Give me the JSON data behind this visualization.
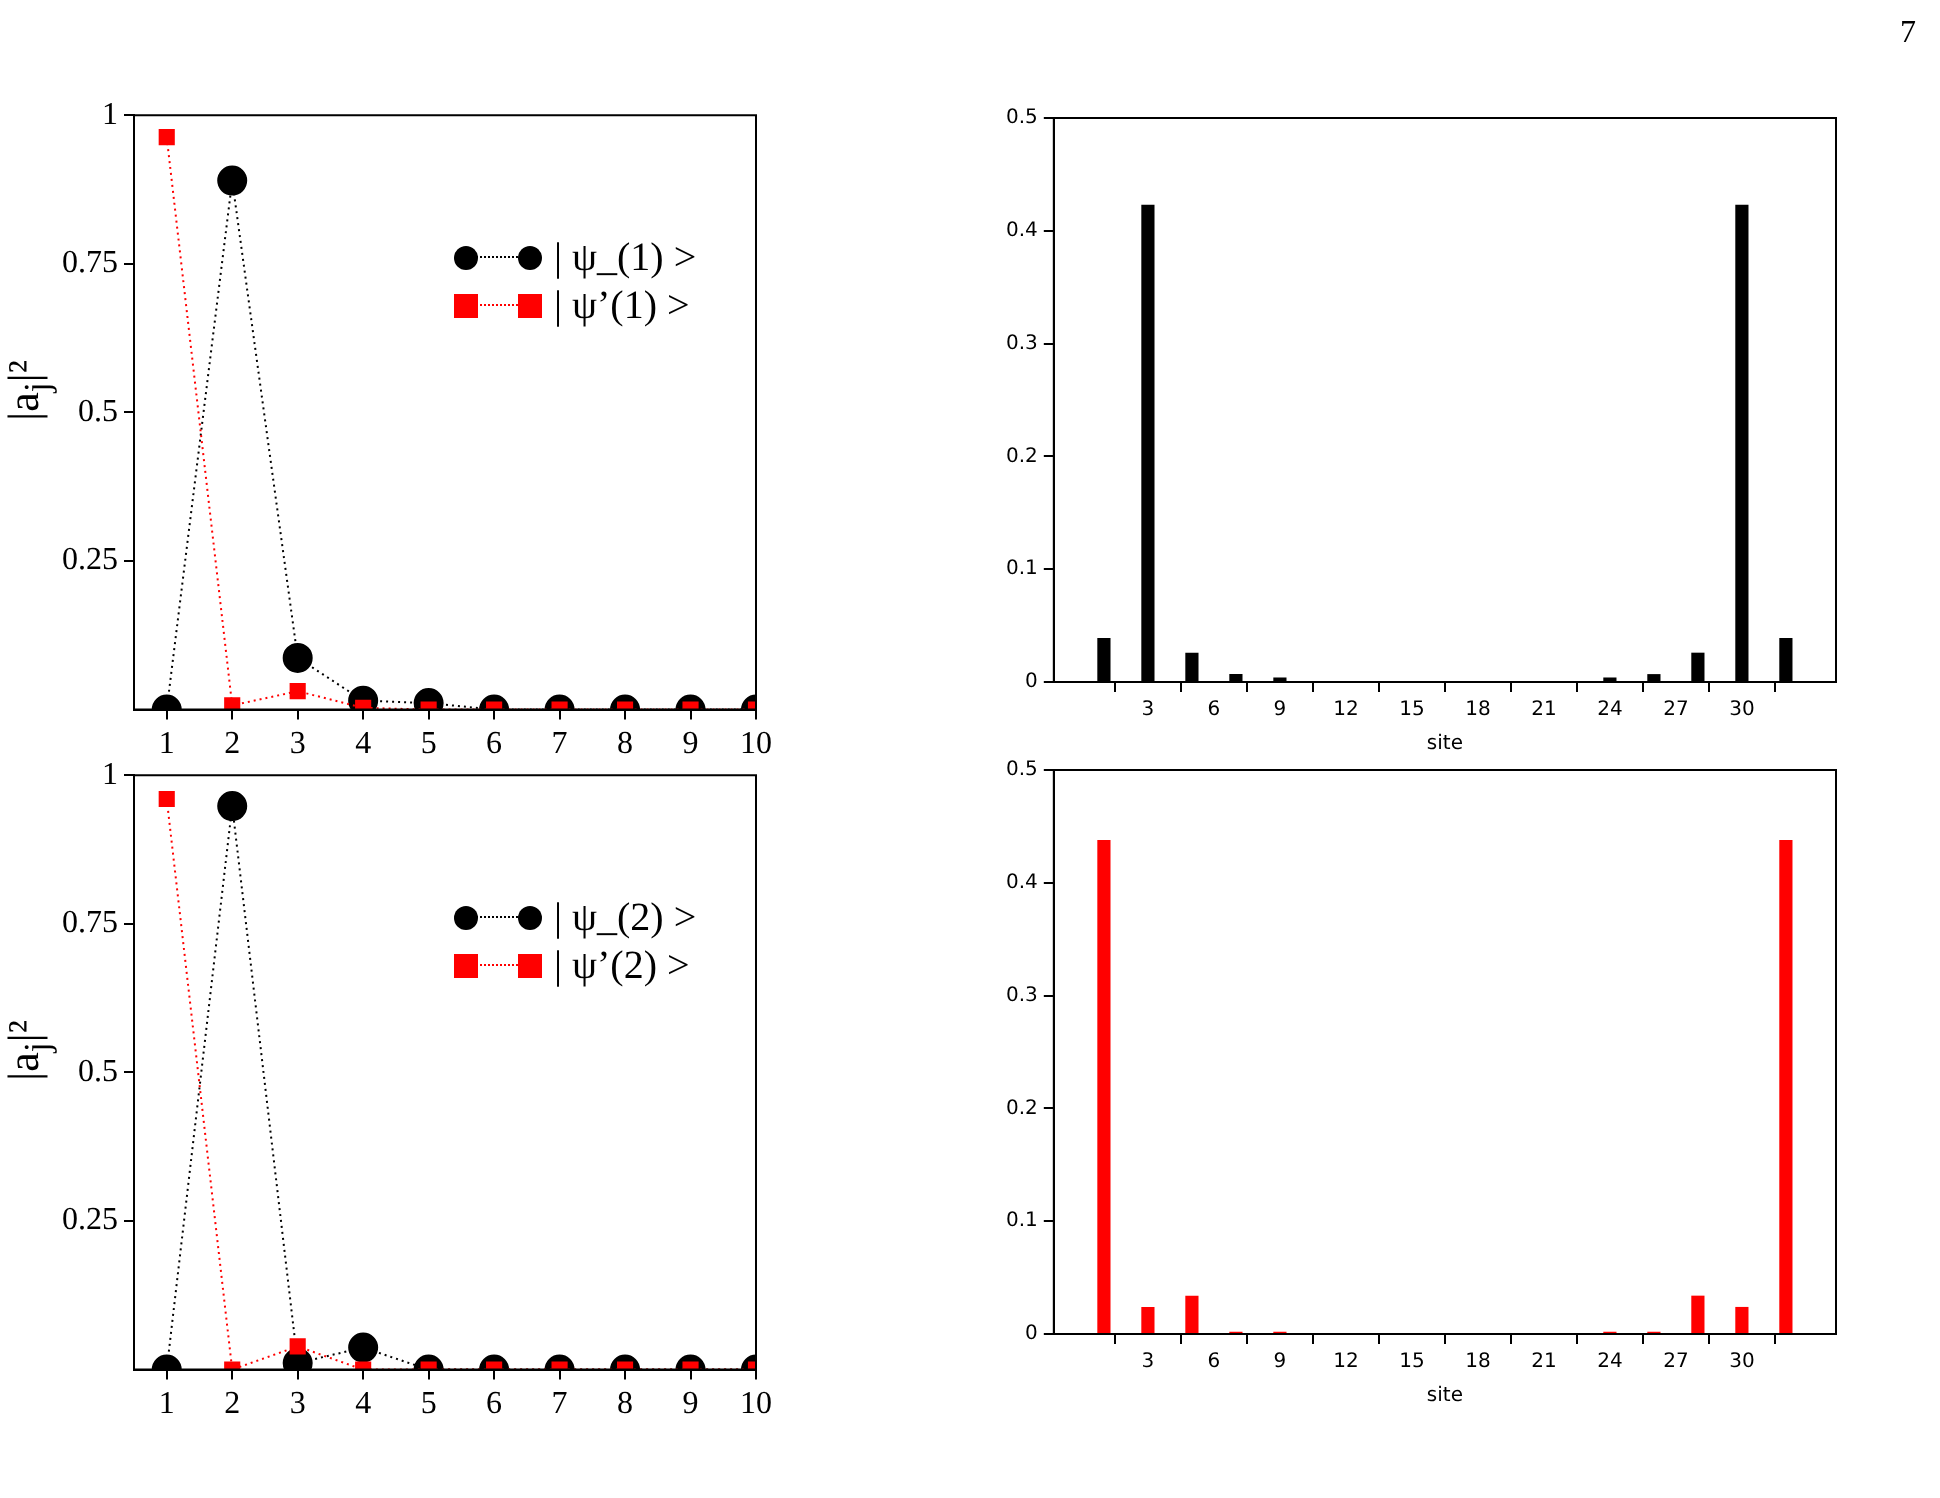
{
  "chart_data": [
    {
      "type": "line",
      "ylabel": "|a$_{j}$|²",
      "x": [
        1,
        2,
        3,
        4,
        5,
        6,
        7,
        8,
        9,
        10
      ],
      "xlim": [
        0.5,
        10
      ],
      "xticks": [
        1,
        2,
        3,
        4,
        5,
        6,
        7,
        8,
        9,
        10
      ],
      "ylim": [
        0,
        1
      ],
      "yticks": [
        0.25,
        0.5,
        0.75,
        1
      ],
      "legend": "top right",
      "line_style": "dotted",
      "grid": false,
      "series": [
        {
          "name": "| ψ_(1) >",
          "color": "#000000",
          "marker": "circle",
          "values": [
            0,
            0.89,
            0.087,
            0.015,
            0.011,
            0,
            0,
            0,
            0,
            0
          ]
        },
        {
          "name": "| ψ’(1) >",
          "color": "#ff0000",
          "marker": "square",
          "values": [
            0.963,
            0.007,
            0.031,
            0.003,
            0,
            0,
            0,
            0,
            0,
            0
          ]
        }
      ]
    },
    {
      "type": "bar",
      "xlabel": "site",
      "annotations": [
        "7"
      ],
      "x": [
        1,
        2,
        3,
        4,
        5,
        6,
        7,
        8,
        9,
        10,
        11,
        12,
        13,
        14,
        15,
        16,
        17,
        18,
        19,
        20,
        21,
        22,
        23,
        24,
        25,
        26,
        27,
        28,
        29,
        30,
        31,
        32
      ],
      "xlim": [
        0.5,
        32.5
      ],
      "xticks": [
        3,
        6,
        9,
        12,
        15,
        18,
        21,
        24,
        27,
        30
      ],
      "ylim": [
        0,
        0.5
      ],
      "yticks": [
        0,
        0.1,
        0.2,
        0.3,
        0.4,
        0.5
      ],
      "grid": false,
      "color": "#000000",
      "values": [
        0.039,
        0,
        0.423,
        0,
        0.026,
        0,
        0.007,
        0,
        0.004,
        0,
        0,
        0,
        0,
        0,
        0,
        0,
        0,
        0,
        0,
        0,
        0,
        0,
        0,
        0.004,
        0,
        0.007,
        0,
        0.026,
        0,
        0.423,
        0,
        0.039
      ]
    },
    {
      "type": "line",
      "ylabel": "|a$_{j}$|²",
      "x": [
        1,
        2,
        3,
        4,
        5,
        6,
        7,
        8,
        9,
        10
      ],
      "xlim": [
        0.5,
        10
      ],
      "xticks": [
        1,
        2,
        3,
        4,
        5,
        6,
        7,
        8,
        9,
        10
      ],
      "ylim": [
        0,
        1
      ],
      "yticks": [
        0.25,
        0.5,
        0.75,
        1
      ],
      "legend": "top right",
      "line_style": "dotted",
      "grid": false,
      "series": [
        {
          "name": "| ψ_(2) >",
          "color": "#000000",
          "marker": "circle",
          "values": [
            0,
            0.948,
            0.011,
            0.037,
            0,
            0,
            0,
            0,
            0,
            0
          ]
        },
        {
          "name": "| ψ’(2) >",
          "color": "#ff0000",
          "marker": "square",
          "values": [
            0.96,
            0,
            0.039,
            0,
            0,
            0,
            0,
            0,
            0,
            0
          ]
        }
      ]
    },
    {
      "type": "bar",
      "xlabel": "site",
      "x": [
        1,
        2,
        3,
        4,
        5,
        6,
        7,
        8,
        9,
        10,
        11,
        12,
        13,
        14,
        15,
        16,
        17,
        18,
        19,
        20,
        21,
        22,
        23,
        24,
        25,
        26,
        27,
        28,
        29,
        30,
        31,
        32
      ],
      "xlim": [
        0.5,
        32.5
      ],
      "xticks": [
        3,
        6,
        9,
        12,
        15,
        18,
        21,
        24,
        27,
        30
      ],
      "ylim": [
        0,
        0.5
      ],
      "yticks": [
        0,
        0.1,
        0.2,
        0.3,
        0.4,
        0.5
      ],
      "grid": false,
      "color": "#ff0000",
      "values": [
        0.438,
        0,
        0.024,
        0,
        0.034,
        0,
        0.002,
        0,
        0.002,
        0,
        0,
        0,
        0,
        0,
        0,
        0,
        0,
        0,
        0,
        0,
        0,
        0,
        0,
        0.002,
        0,
        0.002,
        0,
        0.034,
        0,
        0.024,
        0,
        0.438
      ]
    }
  ]
}
